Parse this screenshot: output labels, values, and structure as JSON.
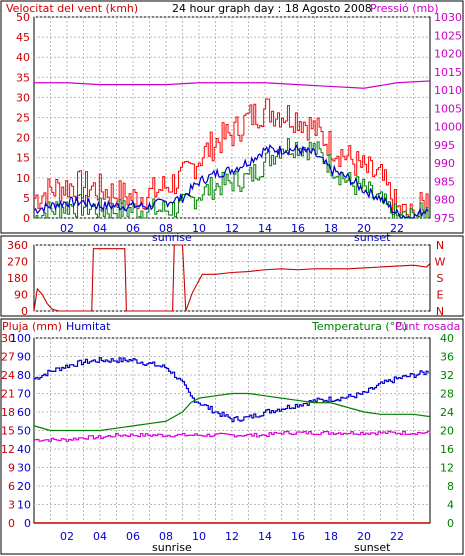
{
  "chart_data": [
    {
      "type": "line",
      "title": "24 hour graph day : 18 Agosto 2008",
      "ylabel": "Velocitat del vent (kmh)",
      "ylabel_right": "Pressió (mb)",
      "ylim": [
        0,
        50
      ],
      "ylim_right": [
        975,
        1030
      ],
      "yticks": [
        "0",
        "5",
        "10",
        "15",
        "20",
        "25",
        "30",
        "35",
        "40",
        "45",
        "50"
      ],
      "yticks_right": [
        "975",
        "980",
        "985",
        "990",
        "995",
        "1000",
        "1005",
        "1010",
        "1015",
        "1020",
        "1025",
        "1030"
      ],
      "xticks": [
        "02",
        "04",
        "06",
        "08",
        "10",
        "12",
        "14",
        "16",
        "18",
        "20",
        "22"
      ],
      "x_markers": [
        "sunrise",
        "sunset"
      ],
      "grid": true,
      "colors": {
        "gust": "#ff0000",
        "avg": "#0000cc",
        "wind": "#008000",
        "pressure": "#cc00cc",
        "axis_left": "#cc0000",
        "axis_right": "#cc00cc"
      },
      "series": [
        {
          "name": "gust",
          "x": [
            0,
            1,
            2,
            3,
            4,
            5,
            6,
            7,
            8,
            9,
            10,
            11,
            12,
            13,
            14,
            15,
            16,
            17,
            18,
            19,
            20,
            21,
            22,
            23,
            24
          ],
          "values": [
            5,
            7,
            8,
            8,
            7,
            6,
            5,
            6,
            8,
            10,
            15,
            19,
            21,
            25,
            27,
            26,
            25,
            22,
            18,
            15,
            12,
            10,
            2,
            0,
            6
          ]
        },
        {
          "name": "avg",
          "x": [
            0,
            1,
            2,
            3,
            4,
            5,
            6,
            7,
            8,
            9,
            10,
            11,
            12,
            13,
            14,
            15,
            16,
            17,
            18,
            19,
            20,
            21,
            22,
            23,
            24
          ],
          "values": [
            2,
            3,
            4,
            4,
            3,
            3,
            3,
            3,
            4,
            5,
            9,
            11,
            12,
            14,
            17,
            17,
            17,
            16,
            12,
            10,
            7,
            5,
            1,
            0,
            3
          ]
        },
        {
          "name": "wind",
          "x": [
            0,
            1,
            2,
            3,
            4,
            5,
            6,
            7,
            8,
            9,
            10,
            11,
            12,
            13,
            14,
            15,
            16,
            17,
            18,
            19,
            20,
            21,
            22,
            23,
            24
          ],
          "values": [
            0,
            2,
            3,
            3,
            2,
            2,
            2,
            2,
            2,
            3,
            6,
            8,
            9,
            10,
            14,
            18,
            18,
            17,
            13,
            9,
            7,
            4,
            0,
            0,
            2
          ]
        },
        {
          "name": "pressure",
          "x": [
            0,
            2,
            4,
            6,
            8,
            10,
            12,
            14,
            16,
            18,
            20,
            22,
            24
          ],
          "values": [
            1012,
            1012,
            1011.5,
            1011.5,
            1011.5,
            1012,
            1012,
            1012,
            1011.5,
            1011,
            1010.5,
            1012,
            1012.5
          ]
        }
      ]
    },
    {
      "type": "line",
      "ylim": [
        0,
        360
      ],
      "yticks": [
        "0",
        "90",
        "180",
        "270",
        "360"
      ],
      "yticks_right": [
        "N",
        "W",
        "S",
        "E",
        "N"
      ],
      "colors": {
        "direction": "#cc0000"
      },
      "series": [
        {
          "name": "direction",
          "x": [
            0,
            0.2,
            0.5,
            0.8,
            1.1,
            1.5,
            3.5,
            3.6,
            5.5,
            5.6,
            6,
            7.7,
            8.4,
            8.5,
            9,
            9.2,
            9.6,
            10.2,
            11,
            12,
            13,
            14,
            15,
            16,
            17,
            18,
            19,
            20,
            21,
            22,
            23,
            23.8,
            24
          ],
          "values": [
            0,
            120,
            90,
            40,
            10,
            0,
            0,
            340,
            340,
            0,
            0,
            0,
            0,
            360,
            360,
            0,
            100,
            200,
            200,
            210,
            215,
            225,
            230,
            225,
            230,
            230,
            230,
            235,
            240,
            245,
            250,
            240,
            260
          ]
        }
      ]
    },
    {
      "type": "line",
      "ylabel": "Pluja (mm)",
      "ylabel_2": "Humitat",
      "ylabel_right": "Temperatura (°C)",
      "ylabel_right_2": "Punt rosada",
      "ylim": [
        0,
        30
      ],
      "ylim_2": [
        0,
        100
      ],
      "ylim_right": [
        0,
        40
      ],
      "yticks": [
        "0",
        "3",
        "6",
        "9",
        "12",
        "15",
        "18",
        "21",
        "24",
        "27",
        "30"
      ],
      "yticks_2": [
        "0",
        "10",
        "20",
        "30",
        "40",
        "50",
        "60",
        "70",
        "80",
        "90",
        "100"
      ],
      "yticks_right": [
        "0",
        "4",
        "8",
        "12",
        "16",
        "20",
        "24",
        "28",
        "32",
        "36",
        "40"
      ],
      "colors": {
        "rain": "#cc0000",
        "humidity": "#0000cc",
        "temperature": "#008000",
        "dewpoint": "#dd00dd"
      },
      "series": [
        {
          "name": "rain",
          "x": [
            0,
            24
          ],
          "values": [
            0,
            0
          ]
        },
        {
          "name": "humidity",
          "x": [
            0,
            1,
            2,
            3,
            4,
            5,
            6,
            7,
            8,
            8.5,
            9,
            9.5,
            10,
            11,
            12,
            13,
            14,
            15,
            16,
            17,
            18,
            19,
            20,
            21,
            22,
            23,
            24
          ],
          "values": [
            78,
            82,
            85,
            87,
            88,
            88,
            88,
            86,
            84,
            80,
            75,
            68,
            65,
            60,
            56,
            57,
            60,
            62,
            64,
            66,
            67,
            68,
            70,
            75,
            78,
            80,
            82
          ]
        },
        {
          "name": "temperature",
          "x": [
            0,
            1,
            2,
            3,
            4,
            5,
            6,
            7,
            8,
            8.5,
            9,
            9.5,
            10,
            11,
            12,
            13,
            14,
            15,
            16,
            17,
            18,
            19,
            20,
            21,
            22,
            23,
            24
          ],
          "values": [
            21,
            20,
            20,
            20,
            20,
            20.5,
            21,
            21.5,
            22,
            23,
            24,
            26,
            27,
            27.5,
            28,
            28,
            27.5,
            27,
            26.5,
            26,
            26,
            25,
            24,
            23.5,
            23.5,
            23.5,
            23
          ]
        },
        {
          "name": "dewpoint",
          "x": [
            0,
            1,
            2,
            3,
            4,
            5,
            6,
            7,
            8,
            9,
            10,
            11,
            12,
            13,
            14,
            15,
            16,
            17,
            18,
            19,
            20,
            21,
            22,
            23,
            24
          ],
          "values": [
            18,
            18,
            18,
            18.5,
            18.5,
            19,
            19,
            19,
            19,
            19,
            19,
            19,
            19,
            19,
            19,
            19.5,
            19.5,
            19.5,
            19.5,
            19.5,
            19.5,
            19.5,
            19.5,
            19.5,
            19.5
          ]
        }
      ]
    }
  ],
  "top": {
    "title": "24 hour graph day : 18 Agosto 2008",
    "left_label": "Velocitat del vent (kmh)",
    "right_label": "Pressió (mb)",
    "sunrise": "sunrise",
    "sunset": "sunset"
  },
  "middle": {
    "dir_labels": [
      "N",
      "W",
      "S",
      "E",
      "N"
    ]
  },
  "bottom": {
    "rain_label": "Pluja (mm)",
    "humidity_label": "Humitat",
    "temp_label": "Temperatura (°C)",
    "dew_label": "Punt rosada",
    "sunrise": "sunrise",
    "sunset": "sunset"
  }
}
